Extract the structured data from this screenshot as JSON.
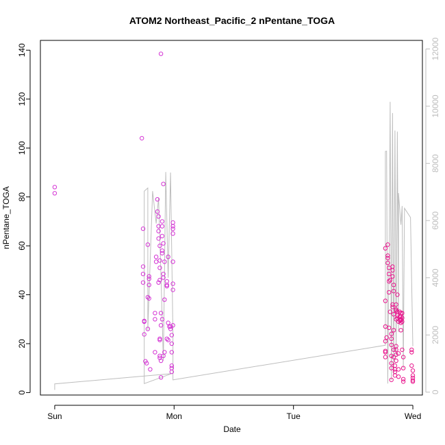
{
  "chart_data": {
    "type": "scatter",
    "title": "ATOM2 Northeast_Pacific_2 nPentane_TOGA",
    "xlabel": "Date",
    "ylabel": "nPentane_TOGA",
    "x_ticks": [
      {
        "day": 0,
        "label": "Sun"
      },
      {
        "day": 1,
        "label": "Mon"
      },
      {
        "day": 2,
        "label": "Tue"
      },
      {
        "day": 3,
        "label": "Wed"
      }
    ],
    "xlim": [
      -0.12,
      3.08
    ],
    "ylim": [
      -1,
      144
    ],
    "y_ticks": [
      0,
      20,
      40,
      60,
      80,
      100,
      120,
      140
    ],
    "y2lim": [
      -100,
      12300
    ],
    "y2_ticks": [
      0,
      2000,
      4000,
      6000,
      8000,
      10000,
      12000
    ],
    "grid": false,
    "colors": {
      "points": "#d433d4",
      "points_alt": "#e8148c",
      "line": "#bdbdbd",
      "axis": "#000000",
      "axis2": "#bdbdbd"
    },
    "series": [
      {
        "values_note": "points: [day, nPentane_TOGA]",
        "points": [
          [
            0.0,
            84
          ],
          [
            0.0,
            81.5
          ],
          [
            0.73,
            104
          ],
          [
            0.74,
            67
          ],
          [
            0.74,
            51.5
          ],
          [
            0.74,
            48.5
          ],
          [
            0.74,
            45
          ],
          [
            0.75,
            29
          ],
          [
            0.75,
            29.3
          ],
          [
            0.75,
            23.8
          ],
          [
            0.76,
            12.8
          ],
          [
            0.77,
            12
          ],
          [
            0.78,
            60.5
          ],
          [
            0.79,
            47.5
          ],
          [
            0.79,
            46.5
          ],
          [
            0.79,
            44
          ],
          [
            0.78,
            39
          ],
          [
            0.79,
            38.5
          ],
          [
            0.78,
            26
          ],
          [
            0.8,
            9.5
          ],
          [
            0.84,
            16.5
          ],
          [
            0.84,
            32.5
          ],
          [
            0.84,
            30
          ],
          [
            0.85,
            53.5
          ],
          [
            0.85,
            55.5
          ],
          [
            0.86,
            79
          ],
          [
            0.86,
            74
          ],
          [
            0.87,
            72
          ],
          [
            0.87,
            68
          ],
          [
            0.87,
            66
          ],
          [
            0.87,
            63
          ],
          [
            0.88,
            60
          ],
          [
            0.88,
            54
          ],
          [
            0.88,
            51
          ],
          [
            0.88,
            46
          ],
          [
            0.87,
            45
          ],
          [
            0.88,
            22
          ],
          [
            0.88,
            21.5
          ],
          [
            0.88,
            15
          ],
          [
            0.88,
            14.2
          ],
          [
            0.89,
            13
          ],
          [
            0.89,
            6.2
          ],
          [
            0.89,
            32.5
          ],
          [
            0.89,
            27.5
          ],
          [
            0.9,
            30
          ],
          [
            0.9,
            57
          ],
          [
            0.9,
            58
          ],
          [
            0.9,
            64
          ],
          [
            0.9,
            68
          ],
          [
            0.9,
            70
          ],
          [
            0.91,
            61
          ],
          [
            0.91,
            48.5
          ],
          [
            0.91,
            47
          ],
          [
            0.92,
            38
          ],
          [
            0.92,
            53.5
          ],
          [
            0.92,
            16.5
          ],
          [
            0.91,
            85.3
          ],
          [
            0.94,
            45.5
          ],
          [
            0.94,
            44
          ],
          [
            0.94,
            43.5
          ],
          [
            0.95,
            55.5
          ],
          [
            0.95,
            28.5
          ],
          [
            0.96,
            27
          ],
          [
            0.97,
            26
          ],
          [
            0.97,
            27
          ],
          [
            0.98,
            23.5
          ],
          [
            0.98,
            20
          ],
          [
            0.98,
            16.5
          ],
          [
            0.98,
            11
          ],
          [
            0.98,
            10
          ],
          [
            0.98,
            8.5
          ],
          [
            0.99,
            69.5
          ],
          [
            0.99,
            68
          ],
          [
            0.99,
            67
          ],
          [
            0.99,
            65
          ],
          [
            0.99,
            53.5
          ],
          [
            0.99,
            44.5
          ],
          [
            0.99,
            42
          ],
          [
            0.99,
            27.5
          ],
          [
            0.94,
            22
          ],
          [
            0.95,
            21.5
          ],
          [
            0.91,
            15
          ],
          [
            0.89,
            138.5
          ],
          [
            2.77,
            59
          ],
          [
            2.77,
            37.5
          ],
          [
            2.77,
            27
          ],
          [
            2.77,
            21
          ],
          [
            2.77,
            17
          ],
          [
            2.77,
            16.5
          ],
          [
            2.77,
            14.5
          ],
          [
            2.78,
            22.5
          ],
          [
            2.79,
            60.5
          ],
          [
            2.79,
            56
          ],
          [
            2.79,
            55
          ],
          [
            2.79,
            53
          ],
          [
            2.8,
            51
          ],
          [
            2.8,
            48.5
          ],
          [
            2.8,
            45.5
          ],
          [
            2.8,
            41
          ],
          [
            2.8,
            26.5
          ],
          [
            2.81,
            46
          ],
          [
            2.81,
            33
          ],
          [
            2.82,
            24
          ],
          [
            2.82,
            22
          ],
          [
            2.82,
            19.5
          ],
          [
            2.82,
            15
          ],
          [
            2.82,
            12
          ],
          [
            2.82,
            10
          ],
          [
            2.82,
            5.2
          ],
          [
            2.83,
            51.5
          ],
          [
            2.83,
            50
          ],
          [
            2.83,
            47.5
          ],
          [
            2.83,
            36
          ],
          [
            2.83,
            35
          ],
          [
            2.84,
            44
          ],
          [
            2.84,
            41.5
          ],
          [
            2.84,
            32
          ],
          [
            2.84,
            25.5
          ],
          [
            2.84,
            17.5
          ],
          [
            2.84,
            14.5
          ],
          [
            2.85,
            11
          ],
          [
            2.85,
            9.5
          ],
          [
            2.85,
            8.5
          ],
          [
            2.85,
            7
          ],
          [
            2.86,
            36
          ],
          [
            2.86,
            34
          ],
          [
            2.86,
            33.5
          ],
          [
            2.86,
            30
          ],
          [
            2.86,
            19
          ],
          [
            2.86,
            17.5
          ],
          [
            2.86,
            15.5
          ],
          [
            2.86,
            13
          ],
          [
            2.87,
            40
          ],
          [
            2.87,
            33
          ],
          [
            2.87,
            31.5
          ],
          [
            2.87,
            30.5
          ],
          [
            2.88,
            29
          ],
          [
            2.88,
            16
          ],
          [
            2.88,
            9.5
          ],
          [
            2.88,
            6.5
          ],
          [
            2.89,
            33
          ],
          [
            2.89,
            31
          ],
          [
            2.89,
            29.5
          ],
          [
            2.9,
            32.5
          ],
          [
            2.9,
            31
          ],
          [
            2.9,
            30
          ],
          [
            2.9,
            29.5
          ],
          [
            2.9,
            28.5
          ],
          [
            2.9,
            25.5
          ],
          [
            2.91,
            32.5
          ],
          [
            2.91,
            30.5
          ],
          [
            2.91,
            29
          ],
          [
            2.91,
            17.5
          ],
          [
            2.92,
            14.5
          ],
          [
            2.92,
            10
          ],
          [
            2.92,
            5.5
          ],
          [
            2.92,
            4.5
          ],
          [
            2.99,
            17.5
          ],
          [
            2.99,
            16.5
          ],
          [
            2.99,
            11
          ],
          [
            3.0,
            9
          ],
          [
            3.0,
            7
          ],
          [
            3.0,
            6
          ],
          [
            3.0,
            4.5
          ],
          [
            3.0,
            5
          ]
        ]
      },
      {
        "values_note": "gray line on secondary (right) axis: [day, value]",
        "line": [
          [
            0.0,
            80
          ],
          [
            0.0,
            290
          ],
          [
            0.98,
            650
          ],
          [
            0.75,
            300
          ],
          [
            0.75,
            7030
          ],
          [
            0.78,
            7140
          ],
          [
            0.78,
            2180
          ],
          [
            0.82,
            7030
          ],
          [
            0.85,
            5900
          ],
          [
            0.87,
            6790
          ],
          [
            0.89,
            4100
          ],
          [
            0.91,
            1100
          ],
          [
            0.93,
            7700
          ],
          [
            0.95,
            4000
          ],
          [
            0.97,
            7680
          ],
          [
            0.99,
            2030
          ],
          [
            0.99,
            430
          ],
          [
            2.77,
            1640
          ],
          [
            2.77,
            8420
          ],
          [
            2.78,
            8430
          ],
          [
            2.79,
            300
          ],
          [
            2.8,
            4700
          ],
          [
            2.8,
            3760
          ],
          [
            2.81,
            10150
          ],
          [
            2.82,
            420
          ],
          [
            2.83,
            9760
          ],
          [
            2.84,
            610
          ],
          [
            2.85,
            9150
          ],
          [
            2.86,
            1250
          ],
          [
            2.87,
            9110
          ],
          [
            2.88,
            2100
          ],
          [
            2.88,
            6960
          ],
          [
            2.9,
            5850
          ],
          [
            2.91,
            6510
          ],
          [
            2.92,
            830
          ],
          [
            2.93,
            6430
          ],
          [
            2.98,
            6110
          ],
          [
            3.0,
            1610
          ]
        ]
      }
    ]
  }
}
